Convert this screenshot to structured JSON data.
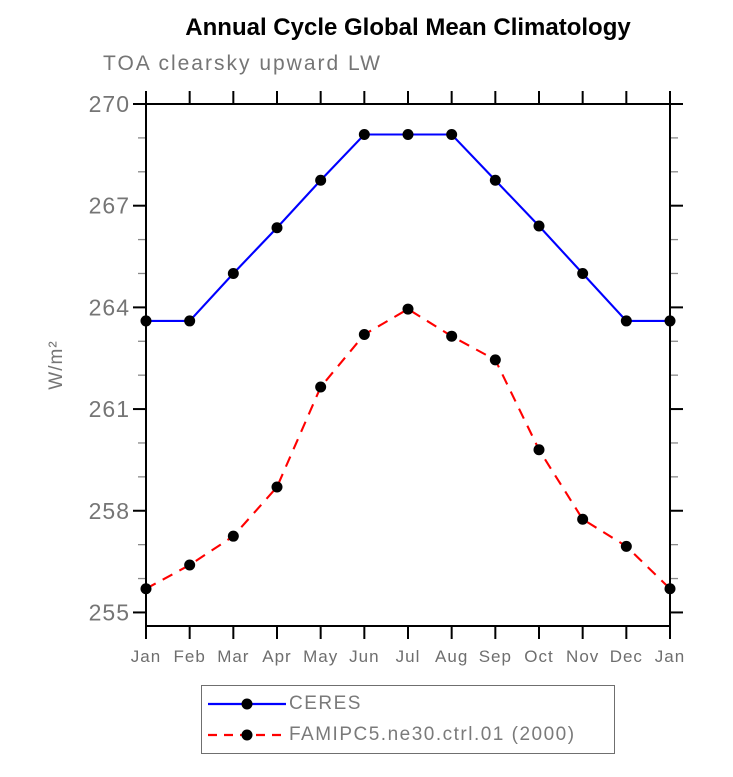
{
  "chart_data": {
    "type": "line",
    "title": "Annual Cycle Global Mean Climatology",
    "subtitle": "TOA clearsky upward LW",
    "ylabel": "W/m²",
    "x_categories": [
      "Jan",
      "Feb",
      "Mar",
      "Apr",
      "May",
      "Jun",
      "Jul",
      "Aug",
      "Sep",
      "Oct",
      "Nov",
      "Dec",
      "Jan"
    ],
    "y_major_ticks": [
      255,
      258,
      261,
      264,
      267,
      270
    ],
    "y_minor_step": 1,
    "ylim": [
      254.6,
      270
    ],
    "grid": false,
    "legend_position": "bottom-center",
    "marker": "filled-circle",
    "marker_color": "#000000",
    "series": [
      {
        "name": "CERES",
        "color": "#0000ff",
        "line_style": "solid",
        "values": [
          263.6,
          263.6,
          265.0,
          266.35,
          267.75,
          269.1,
          269.1,
          269.1,
          267.75,
          266.4,
          265.0,
          263.6,
          263.6
        ]
      },
      {
        "name": "FAMIPC5.ne30.ctrl.01 (2000)",
        "color": "#ff0000",
        "line_style": "dashed",
        "values": [
          255.7,
          256.4,
          257.25,
          258.7,
          261.65,
          263.2,
          263.95,
          263.15,
          262.45,
          259.8,
          257.75,
          256.95,
          255.7
        ]
      }
    ]
  },
  "colors": {
    "axis": "#000000",
    "minor_tick": "#8a8a8a",
    "tick_label": "#757575",
    "month_label": "#6e6e6e",
    "legend_border": "#6f6f6f"
  }
}
